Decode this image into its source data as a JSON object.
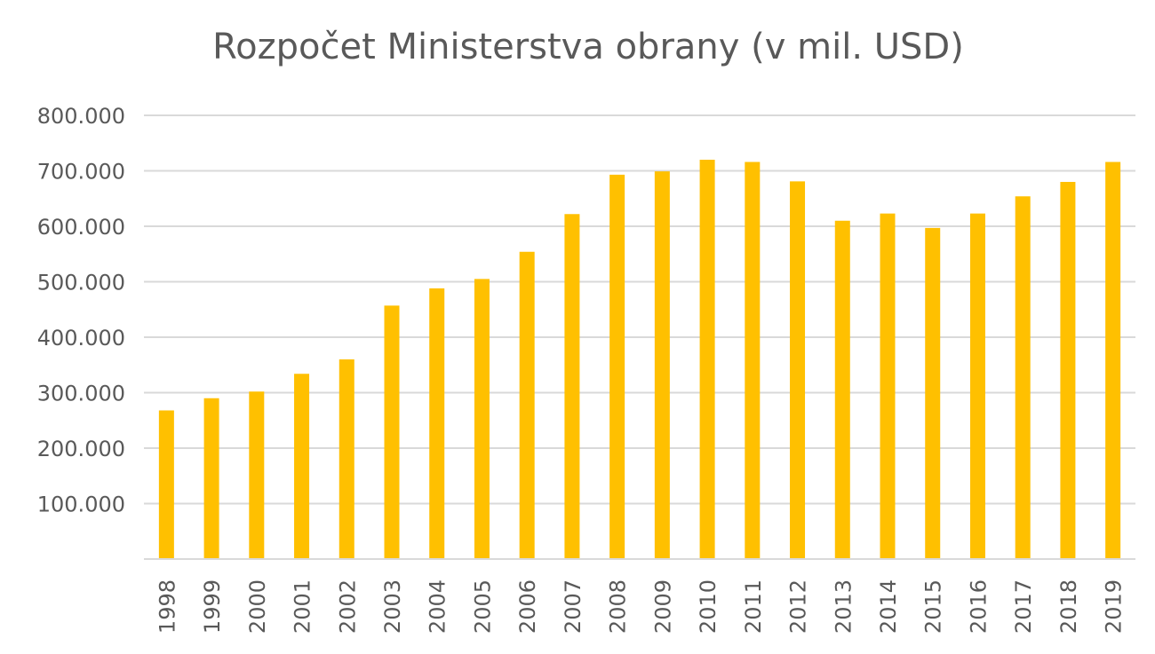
{
  "chart_data": {
    "type": "bar",
    "title": "Rozpočet Ministerstva obrany (v mil. USD)",
    "xlabel": "",
    "ylabel": "",
    "categories": [
      "1998",
      "1999",
      "2000",
      "2001",
      "2002",
      "2003",
      "2004",
      "2005",
      "2006",
      "2007",
      "2008",
      "2009",
      "2010",
      "2011",
      "2012",
      "2013",
      "2014",
      "2015",
      "2016",
      "2017",
      "2018",
      "2019"
    ],
    "values": [
      268000,
      290000,
      302000,
      334000,
      360000,
      457000,
      488000,
      505000,
      554000,
      622000,
      693000,
      699000,
      720000,
      716000,
      681000,
      610000,
      623000,
      597000,
      623000,
      654000,
      680000,
      716000
    ],
    "ylim": [
      0,
      800000
    ],
    "yticks": [
      100000,
      200000,
      300000,
      400000,
      500000,
      600000,
      700000,
      800000
    ],
    "ytick_labels": [
      "100.000",
      "200.000",
      "300.000",
      "400.000",
      "500.000",
      "600.000",
      "700.000",
      "800.000"
    ],
    "grid": true,
    "legend": "none",
    "bar_color": "#ffc000",
    "text_color": "#595959",
    "grid_color": "#d9d9d9"
  }
}
